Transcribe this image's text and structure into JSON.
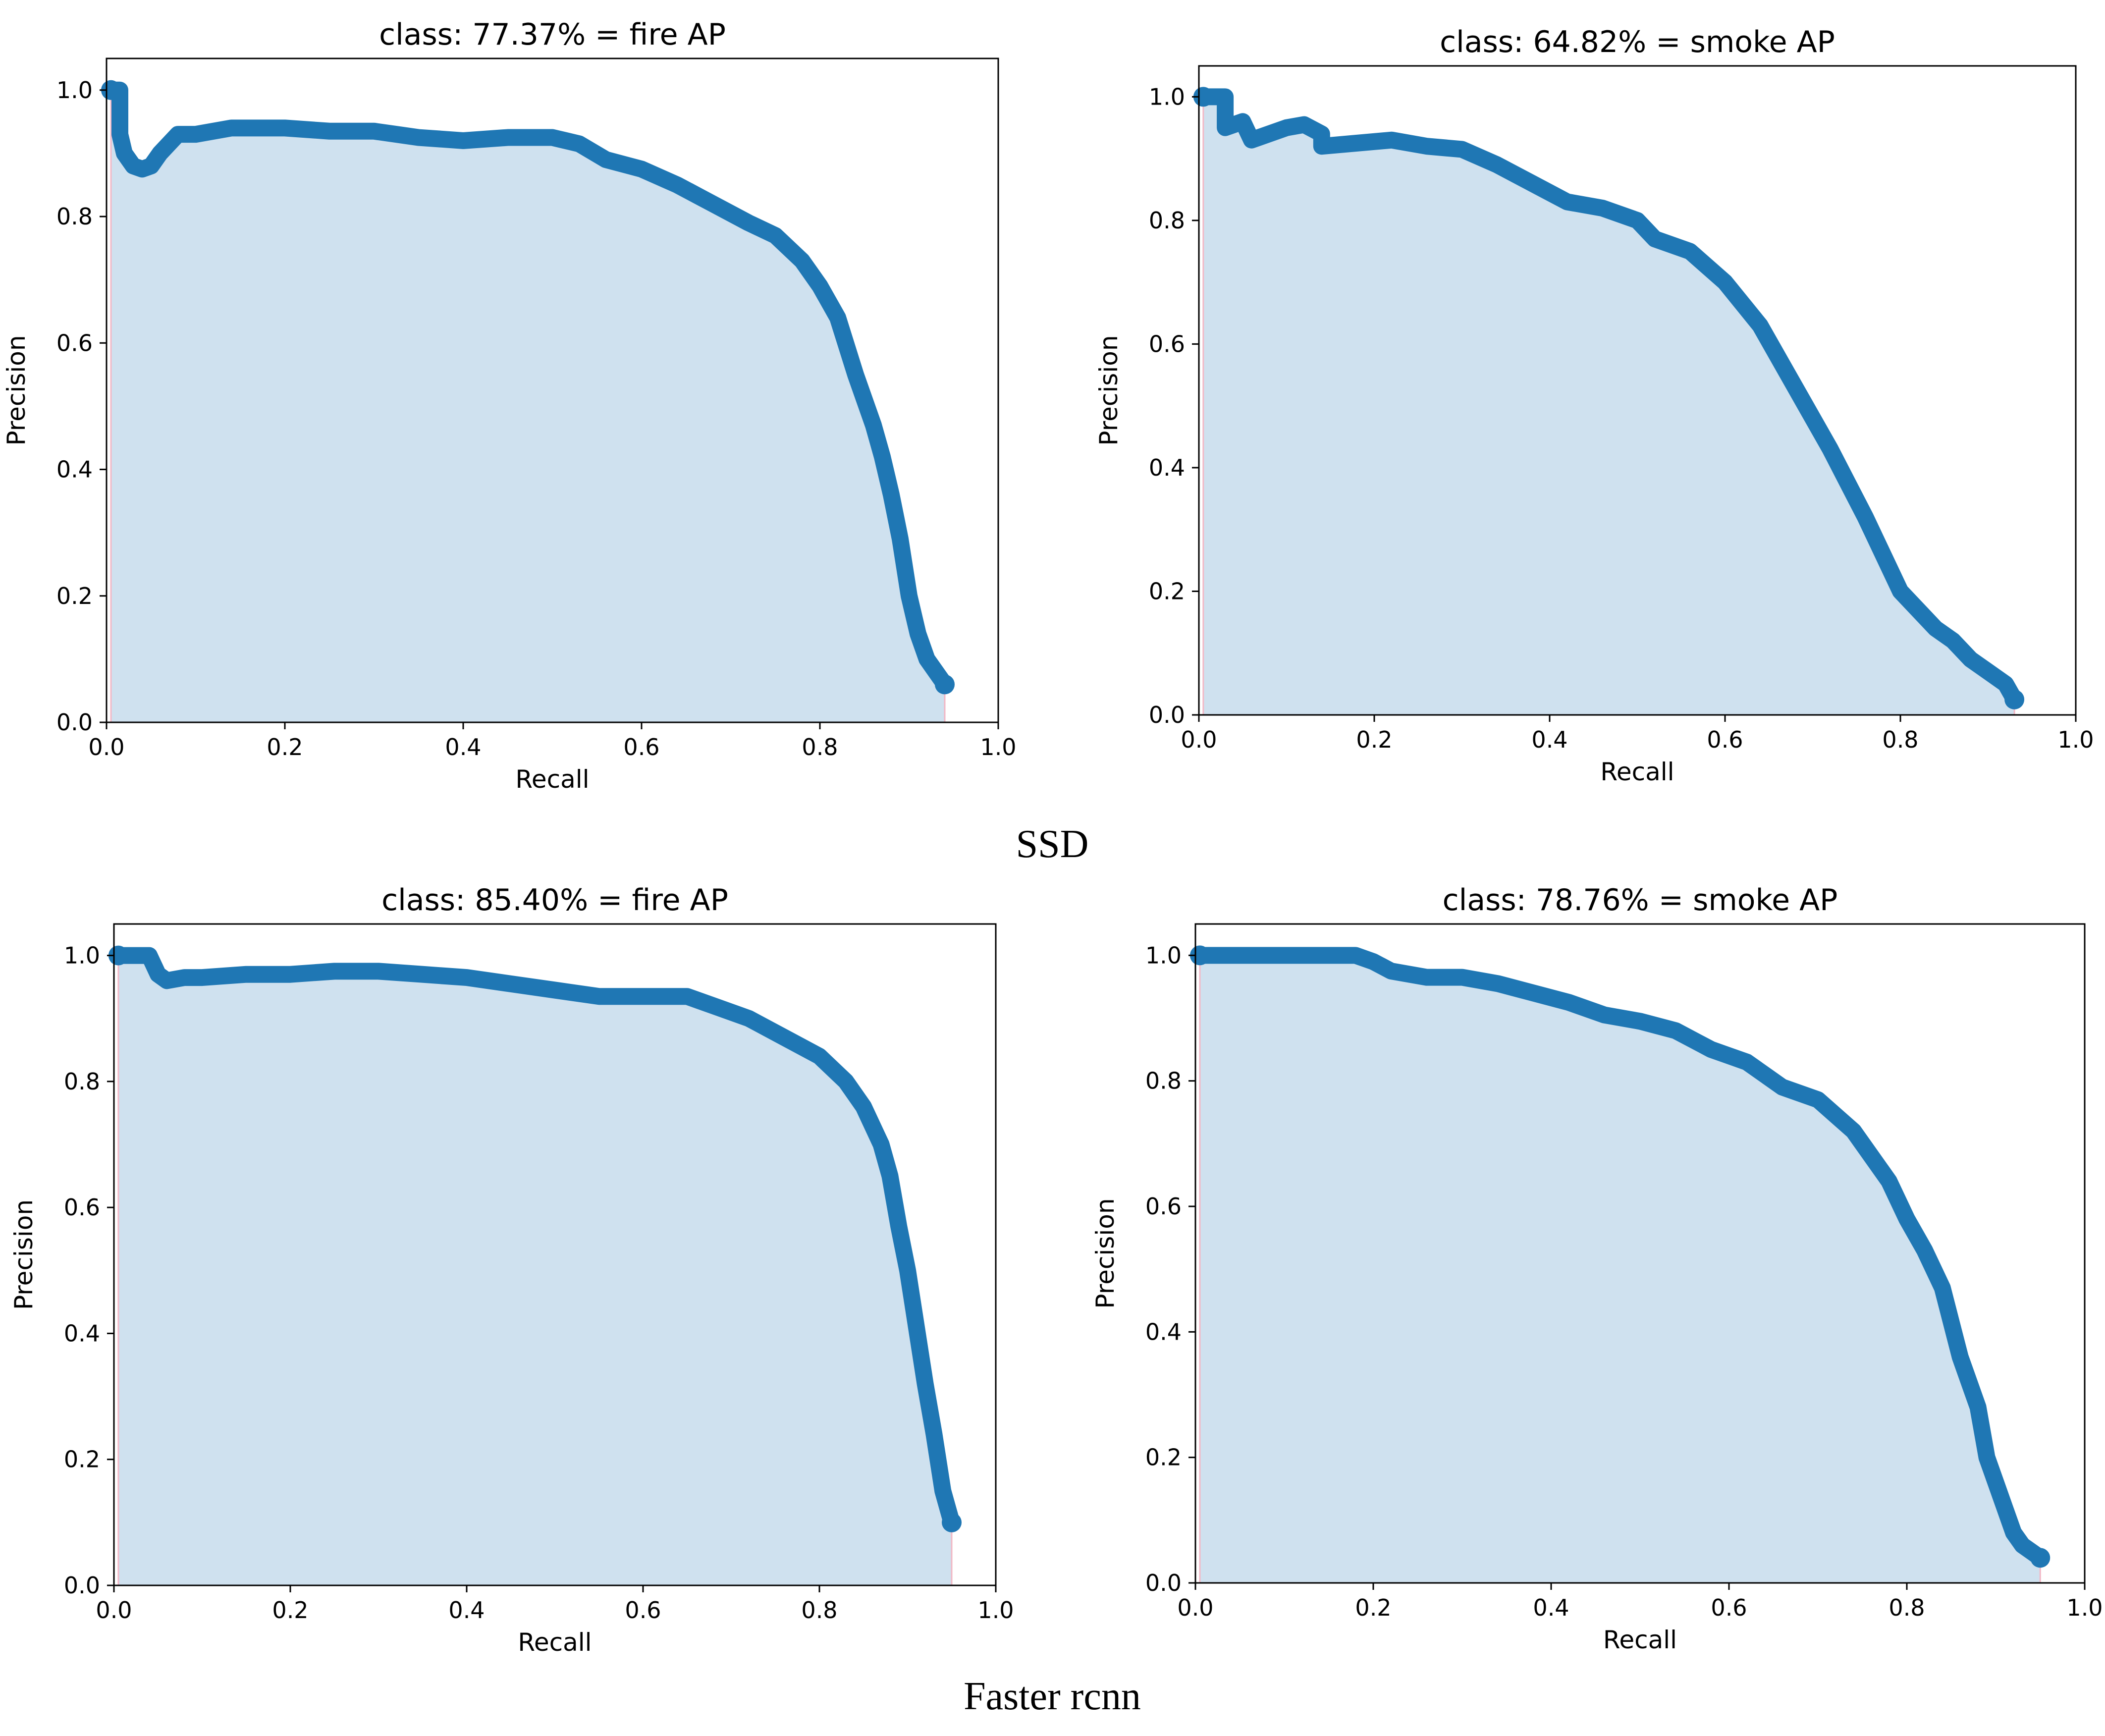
{
  "captions": {
    "top": "SSD",
    "bottom": "Faster rcnn"
  },
  "style": {
    "line_color": "#1f77b4",
    "fill_color": "#cfe1ef",
    "fill_edge_color": "#f2b8c6"
  },
  "chart_data": [
    {
      "type": "area",
      "group": "SSD",
      "title": "class: 77.37% = fire AP",
      "xlabel": "Recall",
      "ylabel": "Precision",
      "xlim": [
        0.0,
        1.0
      ],
      "ylim": [
        0.0,
        1.05
      ],
      "xticks": [
        "0.0",
        "0.2",
        "0.4",
        "0.6",
        "0.8",
        "1.0"
      ],
      "yticks": [
        "0.0",
        "0.2",
        "0.4",
        "0.6",
        "0.8",
        "1.0"
      ],
      "series": [
        {
          "name": "fire",
          "x": [
            0.005,
            0.015,
            0.015,
            0.02,
            0.03,
            0.04,
            0.05,
            0.06,
            0.08,
            0.1,
            0.14,
            0.2,
            0.25,
            0.3,
            0.35,
            0.4,
            0.45,
            0.5,
            0.53,
            0.56,
            0.6,
            0.64,
            0.68,
            0.72,
            0.75,
            0.78,
            0.8,
            0.82,
            0.84,
            0.86,
            0.87,
            0.88,
            0.89,
            0.9,
            0.91,
            0.92,
            0.94
          ],
          "y": [
            1.0,
            1.0,
            0.93,
            0.9,
            0.88,
            0.875,
            0.88,
            0.9,
            0.93,
            0.93,
            0.94,
            0.94,
            0.935,
            0.935,
            0.925,
            0.92,
            0.925,
            0.925,
            0.915,
            0.89,
            0.875,
            0.85,
            0.82,
            0.79,
            0.77,
            0.73,
            0.69,
            0.64,
            0.55,
            0.47,
            0.42,
            0.36,
            0.29,
            0.2,
            0.14,
            0.1,
            0.06
          ]
        }
      ]
    },
    {
      "type": "area",
      "group": "SSD",
      "title": "class: 64.82% = smoke AP",
      "xlabel": "Recall",
      "ylabel": "Precision",
      "xlim": [
        0.0,
        1.0
      ],
      "ylim": [
        0.0,
        1.05
      ],
      "xticks": [
        "0.0",
        "0.2",
        "0.4",
        "0.6",
        "0.8",
        "1.0"
      ],
      "yticks": [
        "0.0",
        "0.2",
        "0.4",
        "0.6",
        "0.8",
        "1.0"
      ],
      "series": [
        {
          "name": "smoke",
          "x": [
            0.005,
            0.03,
            0.03,
            0.05,
            0.06,
            0.08,
            0.1,
            0.12,
            0.14,
            0.14,
            0.18,
            0.22,
            0.26,
            0.3,
            0.34,
            0.38,
            0.42,
            0.46,
            0.5,
            0.52,
            0.56,
            0.6,
            0.64,
            0.68,
            0.72,
            0.76,
            0.8,
            0.84,
            0.86,
            0.88,
            0.9,
            0.92,
            0.93
          ],
          "y": [
            1.0,
            1.0,
            0.95,
            0.96,
            0.93,
            0.94,
            0.95,
            0.955,
            0.94,
            0.92,
            0.925,
            0.93,
            0.92,
            0.915,
            0.89,
            0.86,
            0.83,
            0.82,
            0.8,
            0.77,
            0.75,
            0.7,
            0.63,
            0.53,
            0.43,
            0.32,
            0.2,
            0.14,
            0.12,
            0.09,
            0.07,
            0.05,
            0.025
          ]
        }
      ]
    },
    {
      "type": "area",
      "group": "Faster rcnn",
      "title": "class: 85.40% = fire AP",
      "xlabel": "Recall",
      "ylabel": "Precision",
      "xlim": [
        0.0,
        1.0
      ],
      "ylim": [
        0.0,
        1.05
      ],
      "xticks": [
        "0.0",
        "0.2",
        "0.4",
        "0.6",
        "0.8",
        "1.0"
      ],
      "yticks": [
        "0.0",
        "0.2",
        "0.4",
        "0.6",
        "0.8",
        "1.0"
      ],
      "series": [
        {
          "name": "fire",
          "x": [
            0.005,
            0.04,
            0.05,
            0.06,
            0.08,
            0.1,
            0.15,
            0.2,
            0.25,
            0.3,
            0.35,
            0.4,
            0.45,
            0.5,
            0.55,
            0.6,
            0.65,
            0.68,
            0.72,
            0.76,
            0.8,
            0.83,
            0.85,
            0.87,
            0.88,
            0.89,
            0.9,
            0.91,
            0.92,
            0.93,
            0.94,
            0.95
          ],
          "y": [
            1.0,
            1.0,
            0.97,
            0.96,
            0.965,
            0.965,
            0.97,
            0.97,
            0.975,
            0.975,
            0.97,
            0.965,
            0.955,
            0.945,
            0.935,
            0.935,
            0.935,
            0.92,
            0.9,
            0.87,
            0.84,
            0.8,
            0.76,
            0.7,
            0.65,
            0.57,
            0.5,
            0.41,
            0.32,
            0.24,
            0.15,
            0.1
          ]
        }
      ]
    },
    {
      "type": "area",
      "group": "Faster rcnn",
      "title": "class: 78.76% = smoke AP",
      "xlabel": "Recall",
      "ylabel": "Precision",
      "xlim": [
        0.0,
        1.0
      ],
      "ylim": [
        0.0,
        1.05
      ],
      "xticks": [
        "0.0",
        "0.2",
        "0.4",
        "0.6",
        "0.8",
        "1.0"
      ],
      "yticks": [
        "0.0",
        "0.2",
        "0.4",
        "0.6",
        "0.8",
        "1.0"
      ],
      "series": [
        {
          "name": "smoke",
          "x": [
            0.005,
            0.05,
            0.1,
            0.15,
            0.18,
            0.2,
            0.22,
            0.26,
            0.3,
            0.34,
            0.38,
            0.42,
            0.46,
            0.5,
            0.54,
            0.58,
            0.6,
            0.62,
            0.66,
            0.7,
            0.74,
            0.78,
            0.8,
            0.82,
            0.84,
            0.86,
            0.88,
            0.89,
            0.9,
            0.91,
            0.92,
            0.93,
            0.94,
            0.95
          ],
          "y": [
            1.0,
            1.0,
            1.0,
            1.0,
            1.0,
            0.99,
            0.975,
            0.965,
            0.965,
            0.955,
            0.94,
            0.925,
            0.905,
            0.895,
            0.88,
            0.85,
            0.84,
            0.83,
            0.79,
            0.77,
            0.72,
            0.64,
            0.58,
            0.53,
            0.47,
            0.36,
            0.28,
            0.2,
            0.16,
            0.12,
            0.08,
            0.06,
            0.05,
            0.04
          ]
        }
      ]
    }
  ]
}
